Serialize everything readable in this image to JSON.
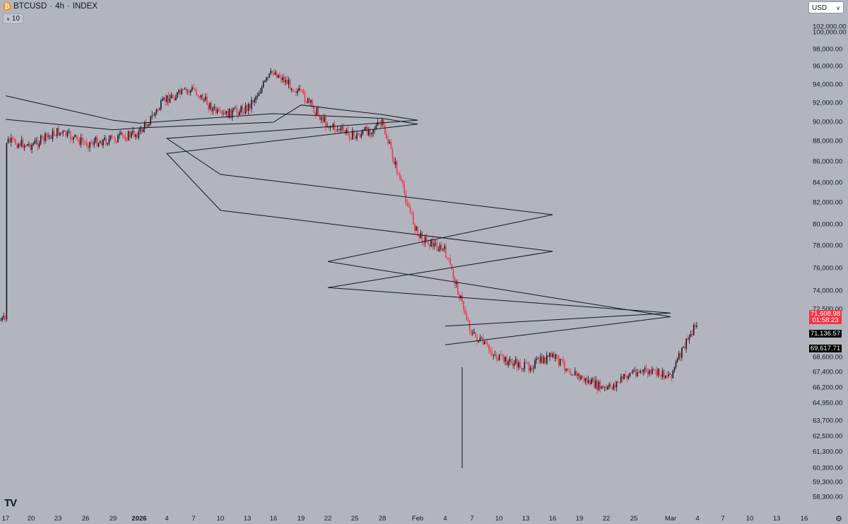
{
  "header": {
    "symbol": "BTCUSD",
    "interval": "4h",
    "exchange": "INDEX",
    "separator": "·",
    "coin_icon": "bitcoin-icon"
  },
  "indicator": {
    "label": "10",
    "icon": "chevron-down-icon"
  },
  "currency": {
    "label": "USD",
    "icon": "chevron-down-icon"
  },
  "logo": {
    "text": "TV",
    "icon": "tradingview-logo-icon"
  },
  "settings": {
    "icon": "gear-icon",
    "glyph": "⚙"
  },
  "price_tags": [
    {
      "value": "71,608.98",
      "color": "#f23645"
    },
    {
      "value": "01:58:23",
      "color": "#f23645"
    },
    {
      "value": "71,136.57",
      "color": "#000000"
    },
    {
      "value": "69,617.71",
      "color": "#000000"
    }
  ],
  "chart_data": {
    "type": "candlestick",
    "title": "BTCUSD · 4h · INDEX",
    "y_axis": {
      "ticks": [
        "102,000.00",
        "100,000.00",
        "98,000.00",
        "96,000.00",
        "94,000.00",
        "92,000.00",
        "90,000.00",
        "88,000.00",
        "86,000.00",
        "84,000.00",
        "82,000.00",
        "80,000.00",
        "78,000.00",
        "76,000.00",
        "74,000.00",
        "72,500.00",
        "68,600.00",
        "67,400.00",
        "66,200.00",
        "64,950.00",
        "63,700.00",
        "62,500.00",
        "61,300.00",
        "60,300.00",
        "59,300.00",
        "58,300.00"
      ]
    },
    "x_axis": {
      "ticks": [
        "17",
        "20",
        "23",
        "26",
        "29",
        "2026",
        "4",
        "7",
        "10",
        "13",
        "16",
        "19",
        "22",
        "25",
        "28",
        "Feb",
        "4",
        "7",
        "10",
        "13",
        "16",
        "19",
        "22",
        "25",
        "Mar",
        "4",
        "7",
        "10",
        "13",
        "16"
      ]
    },
    "path": [
      [
        "17",
        88000
      ],
      [
        "20",
        87600
      ],
      [
        "23",
        89000
      ],
      [
        "26",
        87800
      ],
      [
        "29",
        88200
      ],
      [
        "2026",
        88900
      ],
      [
        "4",
        92500
      ],
      [
        "7",
        93500
      ],
      [
        "10",
        90600
      ],
      [
        "13",
        91500
      ],
      [
        "16",
        95500
      ],
      [
        "19",
        93000
      ],
      [
        "22",
        89700
      ],
      [
        "25",
        88500
      ],
      [
        "28",
        89800
      ],
      [
        "Feb",
        79000
      ],
      [
        "4",
        77500
      ],
      [
        "7",
        70500
      ],
      [
        "10",
        68500
      ],
      [
        "13",
        67800
      ],
      [
        "16",
        68700
      ],
      [
        "19",
        67000
      ],
      [
        "22",
        66000
      ],
      [
        "25",
        67500
      ],
      [
        "Mar",
        67200
      ],
      [
        "4",
        71609
      ]
    ],
    "series": [
      {
        "values": [
          [
            "17",
            92800
          ],
          [
            "29",
            90200
          ],
          [
            "2026",
            89900
          ],
          [
            "16",
            90900
          ],
          [
            "28",
            90400
          ],
          [
            "Feb",
            89800
          ],
          [
            "4",
            86800
          ],
          [
            "10",
            81300
          ],
          [
            "16",
            77500
          ],
          [
            "22",
            74300
          ],
          [
            "Mar",
            72200
          ],
          [
            "4",
            71137
          ]
        ]
      },
      {
        "values": [
          [
            "17",
            90300
          ],
          [
            "29",
            89200
          ],
          [
            "2026",
            89400
          ],
          [
            "16",
            90000
          ],
          [
            "19",
            91800
          ],
          [
            "28",
            90800
          ],
          [
            "Feb",
            90200
          ],
          [
            "4",
            88300
          ],
          [
            "10",
            84800
          ],
          [
            "16",
            80900
          ],
          [
            "22",
            76600
          ],
          [
            "Mar",
            71900
          ],
          [
            "4",
            69618
          ]
        ]
      }
    ],
    "colors": {
      "up": "#131722",
      "down": "#f23645",
      "background": "#b2b5be"
    },
    "grid": false
  }
}
